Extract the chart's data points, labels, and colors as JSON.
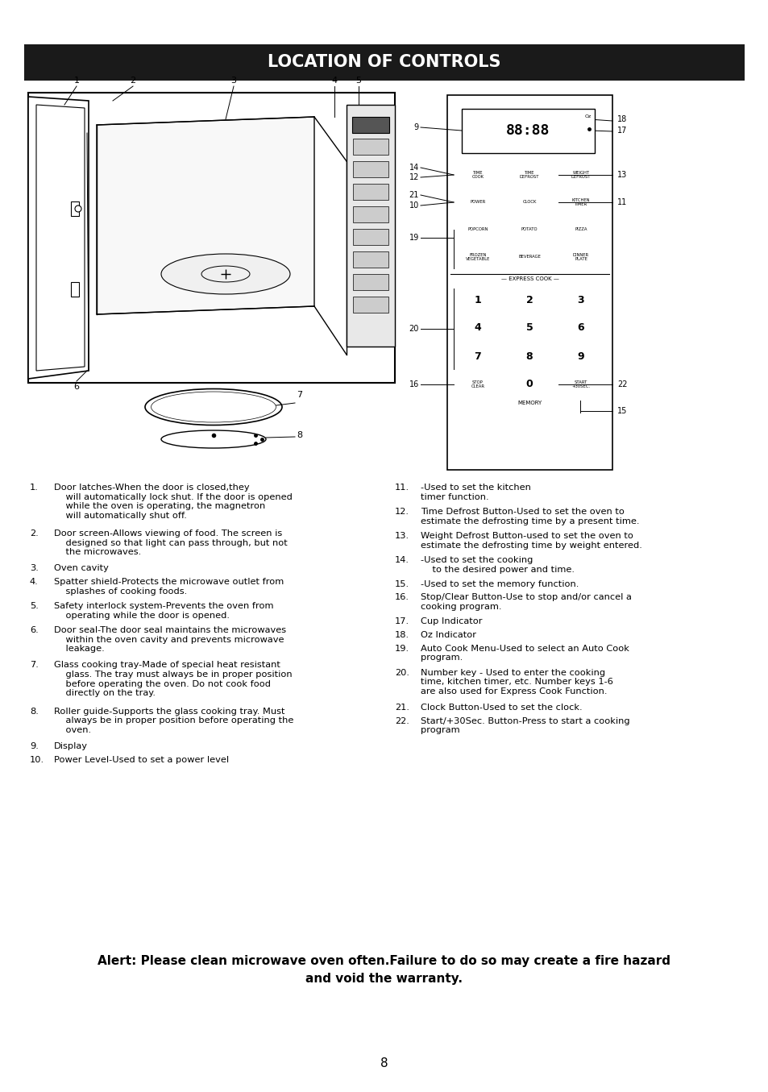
{
  "title": "LOCATION OF CONTROLS",
  "title_bg": "#1a1a1a",
  "title_color": "#ffffff",
  "page_bg": "#ffffff",
  "page_number": "8",
  "left_items": [
    [
      "1.",
      "Door latches-When the door is closed,they\n    will automatically lock shut. If the door is opened\n    while the oven is operating, the magnetron\n    will automatically shut off."
    ],
    [
      "2.",
      "Door screen-Allows viewing of food. The screen is\n    designed so that light can pass through, but not\n    the microwaves."
    ],
    [
      "3.",
      "Oven cavity"
    ],
    [
      "4.",
      "Spatter shield-Protects the microwave outlet from\n    splashes of cooking foods."
    ],
    [
      "5.",
      "Safety interlock system-Prevents the oven from\n    operating while the door is opened."
    ],
    [
      "6.",
      "Door seal-The door seal maintains the microwaves\n    within the oven cavity and prevents microwave\n    leakage."
    ],
    [
      "7.",
      "Glass cooking tray-Made of special heat resistant\n    glass. The tray must always be in proper position\n    before operating the oven. Do not cook food\n    directly on the tray."
    ],
    [
      "8.",
      "Roller guide-Supports the glass cooking tray. Must\n    always be in proper position before operating the\n    oven."
    ],
    [
      "9.",
      "Display"
    ],
    [
      "10.",
      "Power Level-Used to set a power level"
    ]
  ],
  "right_items": [
    [
      "11.",
      "-Used to set the kitchen\ntimer function."
    ],
    [
      "12.",
      "Time Defrost Button-Used to set the oven to\nestimate the defrosting time by a present time."
    ],
    [
      "13.",
      "Weight Defrost Button-used to set the oven to\nestimate the defrosting time by weight entered."
    ],
    [
      "14.",
      "-Used to set the cooking\n    to the desired power and time."
    ],
    [
      "15.",
      "-Used to set the memory function."
    ],
    [
      "16.",
      "Stop/Clear Button-Use to stop and/or cancel a\ncooking program."
    ],
    [
      "17.",
      "Cup Indicator"
    ],
    [
      "18.",
      "Oz Indicator"
    ],
    [
      "19.",
      "Auto Cook Menu-Used to select an Auto Cook\nprogram."
    ],
    [
      "20.",
      "Number key - Used to enter the cooking\ntime, kitchen timer, etc. Number keys 1-6\nare also used for Express Cook Function."
    ],
    [
      "21.",
      "Clock Button-Used to set the clock."
    ],
    [
      "22.",
      "Start/+30Sec. Button-Press to start a cooking\nprogram"
    ]
  ],
  "alert_line1": "Alert: Please clean microwave oven often.Failure to do so may create a fire hazard",
  "alert_line2": "and void the warranty."
}
